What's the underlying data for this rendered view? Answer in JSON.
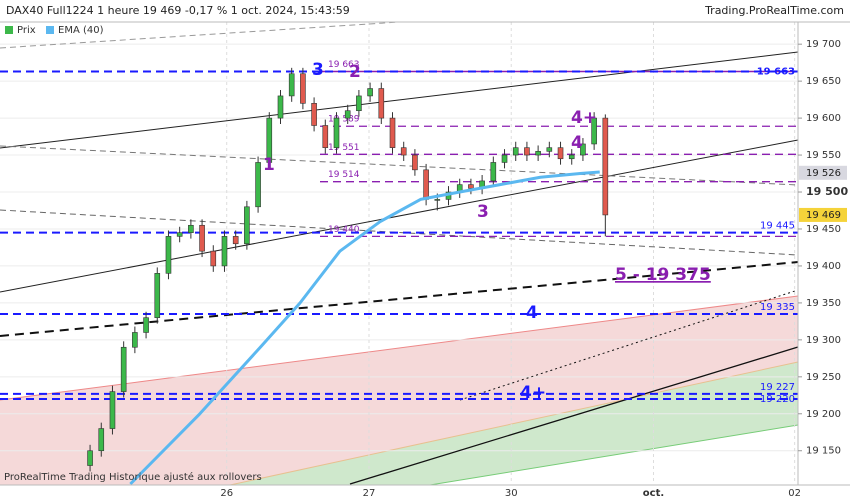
{
  "chart_data": {
    "type": "candlestick",
    "title": "DAX40 Full1224 1 heure 19 469 -0,17 % 1 oct. 2024, 15:43:59",
    "source": "Trading.ProRealTime.com",
    "footer": "ProRealTime Trading  Historique ajusté aux rollovers",
    "ylim": [
      19105,
      19730
    ],
    "yticks": [
      {
        "value": 19150,
        "label": "19 150"
      },
      {
        "value": 19200,
        "label": "19 200"
      },
      {
        "value": 19250,
        "label": "19 250"
      },
      {
        "value": 19300,
        "label": "19 300"
      },
      {
        "value": 19350,
        "label": "19 350"
      },
      {
        "value": 19400,
        "label": "19 400"
      },
      {
        "value": 19450,
        "label": "19 450"
      },
      {
        "value": 19500,
        "label": "19 500"
      },
      {
        "value": 19550,
        "label": "19 550"
      },
      {
        "value": 19600,
        "label": "19 600"
      },
      {
        "value": 19650,
        "label": "19 650"
      },
      {
        "value": 19700,
        "label": "19 700"
      }
    ],
    "xlim": [
      -8.04,
      63.2
    ],
    "xticks": [
      {
        "value": 12.2,
        "label": "26"
      },
      {
        "value": 24.9,
        "label": "27"
      },
      {
        "value": 37.6,
        "label": "30"
      },
      {
        "value": 50.3,
        "label": "oct."
      },
      {
        "value": 62.9,
        "label": "02"
      }
    ],
    "x": [
      0,
      1,
      2,
      3,
      4,
      5,
      6,
      7,
      8,
      9,
      10,
      11,
      12,
      13,
      14,
      15,
      16,
      17,
      18,
      19,
      20,
      21,
      22,
      23,
      24,
      25,
      26,
      27,
      28,
      29,
      30,
      31,
      32,
      33,
      34,
      35,
      36,
      37,
      38,
      39,
      40,
      41,
      42,
      43,
      44,
      45,
      46
    ],
    "series": [
      {
        "name": "Prix",
        "up_color": "#3cb84a",
        "down_color": "#e05a4e",
        "open": [
          19130,
          19150,
          19180,
          19230,
          19290,
          19310,
          19330,
          19390,
          19440,
          19445,
          19455,
          19420,
          19400,
          19440,
          19430,
          19480,
          19540,
          19600,
          19630,
          19660,
          19620,
          19590,
          19560,
          19600,
          19610,
          19630,
          19640,
          19600,
          19560,
          19550,
          19530,
          19490,
          19490,
          19500,
          19510,
          19505,
          19515,
          19540,
          19550,
          19560,
          19550,
          19555,
          19560,
          19545,
          19550,
          19565,
          19600
        ],
        "high": [
          19158,
          19188,
          19238,
          19298,
          19318,
          19338,
          19398,
          19448,
          19453,
          19463,
          19463,
          19428,
          19448,
          19448,
          19488,
          19548,
          19608,
          19638,
          19668,
          19668,
          19628,
          19598,
          19608,
          19618,
          19638,
          19648,
          19648,
          19608,
          19568,
          19558,
          19538,
          19498,
          19508,
          19518,
          19518,
          19523,
          19548,
          19558,
          19568,
          19568,
          19563,
          19568,
          19568,
          19558,
          19573,
          19608,
          19605
        ],
        "low": [
          19122,
          19142,
          19172,
          19222,
          19282,
          19302,
          19322,
          19382,
          19432,
          19437,
          19412,
          19392,
          19392,
          19422,
          19422,
          19472,
          19532,
          19592,
          19622,
          19612,
          19582,
          19552,
          19552,
          19592,
          19602,
          19622,
          19592,
          19552,
          19542,
          19522,
          19482,
          19475,
          19482,
          19492,
          19497,
          19497,
          19507,
          19532,
          19542,
          19542,
          19542,
          19547,
          19537,
          19537,
          19542,
          19557,
          19440
        ],
        "close": [
          19150,
          19180,
          19230,
          19290,
          19310,
          19330,
          19390,
          19440,
          19445,
          19455,
          19420,
          19400,
          19440,
          19430,
          19480,
          19540,
          19600,
          19630,
          19660,
          19620,
          19590,
          19560,
          19600,
          19610,
          19630,
          19640,
          19600,
          19560,
          19550,
          19530,
          19490,
          19490,
          19500,
          19510,
          19505,
          19515,
          19540,
          19550,
          19560,
          19550,
          19555,
          19560,
          19545,
          19550,
          19565,
          19600,
          19469
        ]
      },
      {
        "name": "EMA (40)",
        "color": "#5bb8f0",
        "x": [
          3.6,
          9.8,
          15.2,
          18.75,
          22.3,
          25.9,
          29.5,
          33.0,
          36.6,
          40.2,
          43.75,
          45.5
        ],
        "values": [
          19105,
          19200,
          19290,
          19350,
          19420,
          19460,
          19490,
          19500,
          19510,
          19520,
          19525,
          19527
        ]
      }
    ],
    "levels": [
      {
        "value": 19663,
        "label": "19 663",
        "color": "#1a1aff"
      },
      {
        "value": 19445,
        "label": "19 445",
        "color": "#1a1aff"
      },
      {
        "value": 19335,
        "label": "19 335",
        "color": "#1a1aff"
      },
      {
        "value": 19227,
        "label": "19 227",
        "color": "#1a1aff"
      },
      {
        "value": 19220,
        "label": "19 220",
        "color": "#1a1aff"
      }
    ],
    "zones": [
      {
        "value": 19663,
        "label": "19 663",
        "color": "#8a1fb0"
      },
      {
        "value": 19589,
        "label": "19 589",
        "color": "#8a1fb0"
      },
      {
        "value": 19551,
        "label": "19 551",
        "color": "#8a1fb0"
      },
      {
        "value": 19514,
        "label": "19 514",
        "color": "#8a1fb0"
      },
      {
        "value": 19440,
        "label": "19 440",
        "color": "#8a1fb0"
      }
    ],
    "markers": [
      {
        "value": 19526,
        "label": "19 526",
        "color": "#d8d8e0"
      },
      {
        "value": 19469,
        "label": "19 469",
        "color": "#f5d33a"
      }
    ],
    "annotations": [
      "3",
      "2",
      "1",
      "3",
      "4+",
      "4",
      "5 - 19 375",
      "4",
      "4+"
    ]
  }
}
